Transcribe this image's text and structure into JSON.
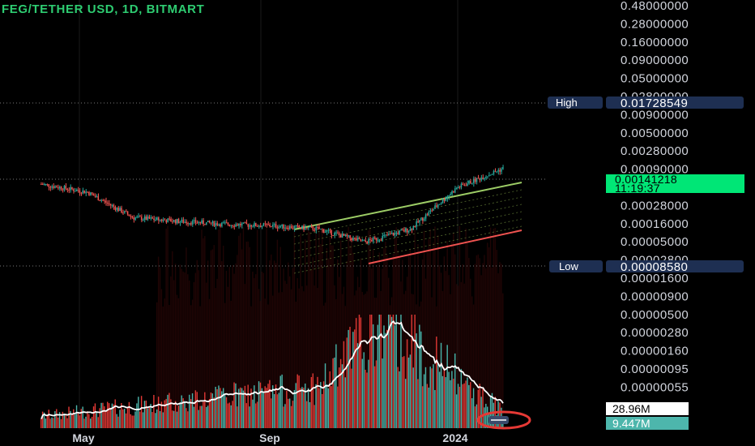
{
  "header": {
    "title": "FEG/TETHER USD, 1D, BITMART"
  },
  "colors": {
    "background": "#000000",
    "up": "#26a69a",
    "down": "#ef5350",
    "volume_up": "#4db6ac",
    "volume_down": "#e53935",
    "volume_ma": "#ffffff",
    "channel_upper": "#9ccc65",
    "channel_lower": "#ef5350",
    "price_tag": "#00e676",
    "hl_tag": "#1e2f52"
  },
  "chart_data": {
    "type": "candlestick",
    "scale": "log",
    "y_tick_labels": [
      "0.48000000",
      "0.28000000",
      "0.16000000",
      "0.09000000",
      "0.05000000",
      "0.02800000",
      "0.00900000",
      "0.00500000",
      "0.00280000",
      "0.00090000",
      "0.00050000",
      "0.00028000",
      "0.00016000",
      "0.00005000",
      "0.00002800",
      "0.00001600",
      "0.00000900",
      "0.00000500",
      "0.00000280",
      "0.00000160",
      "0.00000095",
      "0.00000055"
    ],
    "x_tick_labels": [
      "May",
      "Sep",
      "2024"
    ],
    "high": {
      "label": "High",
      "value": "0.01728549"
    },
    "low": {
      "label": "Low",
      "value": "0.00008580"
    },
    "last_price": {
      "value": "0.00141218",
      "countdown": "11:19:37"
    },
    "volume": {
      "ma_value": "28.96M",
      "last_value": "9.447M"
    },
    "price_series_approx": [
      {
        "t": "Apr",
        "price": 0.0008
      },
      {
        "t": "May",
        "price": 0.0006
      },
      {
        "t": "Jun",
        "price": 0.00024
      },
      {
        "t": "Jul",
        "price": 0.00021
      },
      {
        "t": "Aug",
        "price": 0.00019
      },
      {
        "t": "Sep",
        "price": 0.00018
      },
      {
        "t": "Oct",
        "price": 0.00016
      },
      {
        "t": "Nov",
        "price": 0.0001
      },
      {
        "t": "Dec",
        "price": 0.00016
      },
      {
        "t": "2024",
        "price": 0.0007
      },
      {
        "t": "Jan",
        "price": 0.0014
      }
    ]
  }
}
